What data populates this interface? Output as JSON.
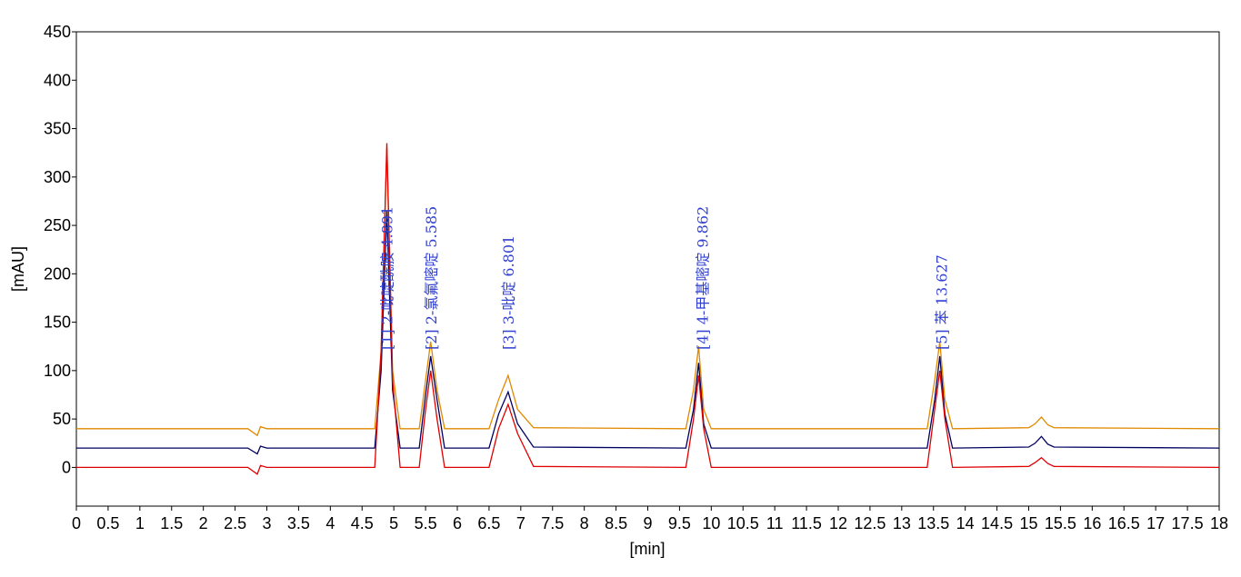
{
  "chart_data": {
    "type": "line",
    "x_label": "[min]",
    "y_label": "[mAU]",
    "x": [
      0,
      2.7,
      2.85,
      2.9,
      3.0,
      3.2,
      4.7,
      4.8,
      4.89,
      4.98,
      5.1,
      5.4,
      5.5,
      5.58,
      5.68,
      5.8,
      6.5,
      6.65,
      6.8,
      6.95,
      7.2,
      9.6,
      9.72,
      9.8,
      9.88,
      10.0,
      13.4,
      13.52,
      13.6,
      13.68,
      13.8,
      15.0,
      15.1,
      15.2,
      15.3,
      15.4,
      18
    ],
    "series": [
      {
        "color": "#e08a00",
        "values": [
          40,
          40,
          33,
          42,
          40,
          40,
          40,
          120,
          330,
          100,
          40,
          40,
          90,
          130,
          80,
          40,
          40,
          70,
          95,
          60,
          41,
          40,
          80,
          125,
          60,
          40,
          40,
          90,
          130,
          70,
          40,
          41,
          45,
          52,
          44,
          41,
          40
        ]
      },
      {
        "color": "#000060",
        "values": [
          20,
          20,
          14,
          22,
          20,
          20,
          20,
          100,
          265,
          80,
          20,
          20,
          75,
          115,
          70,
          20,
          20,
          55,
          78,
          45,
          21,
          20,
          60,
          108,
          45,
          20,
          20,
          70,
          115,
          55,
          20,
          21,
          25,
          32,
          24,
          21,
          20
        ]
      },
      {
        "color": "#e00000",
        "values": [
          0,
          0,
          -7,
          2,
          0,
          0,
          0,
          120,
          335,
          90,
          0,
          0,
          60,
          100,
          50,
          0,
          0,
          40,
          65,
          35,
          1,
          0,
          50,
          95,
          40,
          0,
          0,
          60,
          100,
          50,
          0,
          1,
          5,
          10,
          4,
          1,
          0
        ]
      }
    ],
    "annotations": [
      {
        "text": "[1] 2-吡啶酰胺 4.891",
        "x": 4.891
      },
      {
        "text": "[2] 2-氯氟嘧啶 5.585",
        "x": 5.585
      },
      {
        "text": "[3] 3-吡啶 6.801",
        "x": 6.801
      },
      {
        "text": "[4] 4-甲基嘧啶 9.862",
        "x": 9.862
      },
      {
        "text": "[5] 苯 13.627",
        "x": 13.627
      }
    ],
    "xlim": [
      0,
      18
    ],
    "ylim": [
      -40,
      450
    ],
    "xticks": [
      0,
      0.5,
      1,
      1.5,
      2,
      2.5,
      3,
      3.5,
      4,
      4.5,
      5,
      5.5,
      6,
      6.5,
      7,
      7.5,
      8,
      8.5,
      9,
      9.5,
      10,
      10.5,
      11,
      11.5,
      12,
      12.5,
      13,
      13.5,
      14,
      14.5,
      15,
      15.5,
      16,
      16.5,
      17,
      17.5,
      18
    ],
    "yticks": [
      0,
      50,
      100,
      150,
      200,
      250,
      300,
      350,
      400,
      450
    ]
  }
}
